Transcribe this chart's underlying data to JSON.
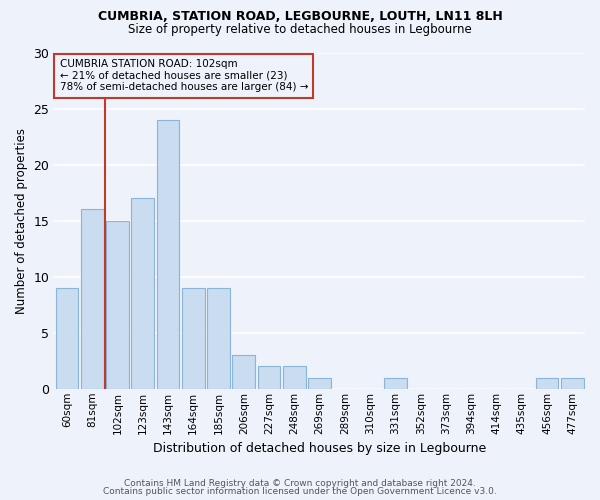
{
  "title1": "CUMBRIA, STATION ROAD, LEGBOURNE, LOUTH, LN11 8LH",
  "title2": "Size of property relative to detached houses in Legbourne",
  "xlabel": "Distribution of detached houses by size in Legbourne",
  "ylabel": "Number of detached properties",
  "categories": [
    "60sqm",
    "81sqm",
    "102sqm",
    "123sqm",
    "143sqm",
    "164sqm",
    "185sqm",
    "206sqm",
    "227sqm",
    "248sqm",
    "269sqm",
    "289sqm",
    "310sqm",
    "331sqm",
    "352sqm",
    "373sqm",
    "394sqm",
    "414sqm",
    "435sqm",
    "456sqm",
    "477sqm"
  ],
  "values": [
    9,
    16,
    15,
    17,
    24,
    9,
    9,
    3,
    2,
    2,
    1,
    0,
    0,
    1,
    0,
    0,
    0,
    0,
    0,
    1,
    1
  ],
  "bar_color": "#c9dcf0",
  "bar_edge_color": "#8ab4d8",
  "highlight_index": 2,
  "highlight_line_color": "#c0392b",
  "annotation_text": "CUMBRIA STATION ROAD: 102sqm\n← 21% of detached houses are smaller (23)\n78% of semi-detached houses are larger (84) →",
  "annotation_box_color": "#c0392b",
  "ylim": [
    0,
    30
  ],
  "yticks": [
    0,
    5,
    10,
    15,
    20,
    25,
    30
  ],
  "footer1": "Contains HM Land Registry data © Crown copyright and database right 2024.",
  "footer2": "Contains public sector information licensed under the Open Government Licence v3.0.",
  "bg_color": "#eef2fa",
  "grid_color": "#ffffff"
}
